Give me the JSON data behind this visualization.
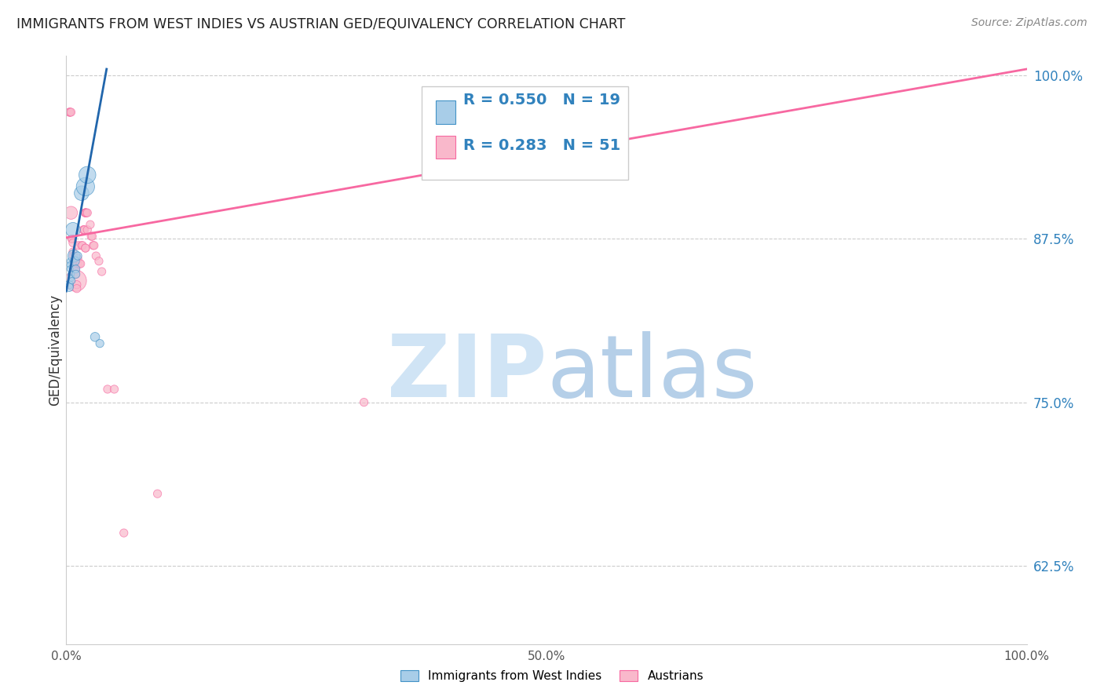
{
  "title": "IMMIGRANTS FROM WEST INDIES VS AUSTRIAN GED/EQUIVALENCY CORRELATION CHART",
  "source_text": "Source: ZipAtlas.com",
  "ylabel": "GED/Equivalency",
  "xlim": [
    0.0,
    1.0
  ],
  "ylim": [
    0.565,
    1.015
  ],
  "yticks": [
    0.625,
    0.75,
    0.875,
    1.0
  ],
  "ytick_labels": [
    "62.5%",
    "75.0%",
    "87.5%",
    "100.0%"
  ],
  "xticks": [
    0.0,
    0.1,
    0.2,
    0.3,
    0.4,
    0.5,
    0.6,
    0.7,
    0.8,
    0.9,
    1.0
  ],
  "xtick_labels": [
    "0.0%",
    "",
    "",
    "",
    "",
    "50.0%",
    "",
    "",
    "",
    "",
    "100.0%"
  ],
  "west_indies_color": "#a8cde8",
  "austrians_color": "#f9b8cb",
  "west_indies_edge_color": "#4292c6",
  "austrians_edge_color": "#f768a1",
  "west_indies_line_color": "#2166ac",
  "austrians_line_color": "#f768a1",
  "background_color": "#ffffff",
  "grid_color": "#cccccc",
  "axis_label_color": "#3182bd",
  "title_color": "#222222",
  "source_color": "#888888",
  "watermark_zip_color": "#d0e4f5",
  "watermark_atlas_color": "#b5cfe8",
  "blue_line_x0": 0.0,
  "blue_line_y0": 0.835,
  "blue_line_x1": 0.042,
  "blue_line_y1": 1.005,
  "pink_line_x0": 0.0,
  "pink_line_y0": 0.876,
  "pink_line_x1": 1.0,
  "pink_line_y1": 1.005,
  "west_indies_points": [
    [
      0.003,
      0.84
    ],
    [
      0.003,
      0.838
    ],
    [
      0.004,
      0.858
    ],
    [
      0.004,
      0.855
    ],
    [
      0.004,
      0.852
    ],
    [
      0.005,
      0.848
    ],
    [
      0.005,
      0.845
    ],
    [
      0.006,
      0.843
    ],
    [
      0.007,
      0.882
    ],
    [
      0.008,
      0.862
    ],
    [
      0.009,
      0.858
    ],
    [
      0.01,
      0.852
    ],
    [
      0.01,
      0.848
    ],
    [
      0.012,
      0.862
    ],
    [
      0.016,
      0.91
    ],
    [
      0.02,
      0.915
    ],
    [
      0.022,
      0.924
    ],
    [
      0.03,
      0.8
    ],
    [
      0.035,
      0.795
    ]
  ],
  "west_indies_sizes": [
    60,
    60,
    35,
    35,
    35,
    35,
    35,
    35,
    180,
    130,
    70,
    55,
    55,
    55,
    180,
    280,
    240,
    70,
    55
  ],
  "austrians_points": [
    [
      0.003,
      0.972
    ],
    [
      0.004,
      0.972
    ],
    [
      0.004,
      0.972
    ],
    [
      0.005,
      0.972
    ],
    [
      0.005,
      0.895
    ],
    [
      0.006,
      0.875
    ],
    [
      0.006,
      0.875
    ],
    [
      0.007,
      0.872
    ],
    [
      0.007,
      0.865
    ],
    [
      0.007,
      0.862
    ],
    [
      0.008,
      0.862
    ],
    [
      0.008,
      0.857
    ],
    [
      0.009,
      0.857
    ],
    [
      0.009,
      0.852
    ],
    [
      0.01,
      0.85
    ],
    [
      0.01,
      0.848
    ],
    [
      0.01,
      0.843
    ],
    [
      0.011,
      0.84
    ],
    [
      0.011,
      0.837
    ],
    [
      0.012,
      0.86
    ],
    [
      0.012,
      0.856
    ],
    [
      0.013,
      0.87
    ],
    [
      0.014,
      0.856
    ],
    [
      0.015,
      0.856
    ],
    [
      0.016,
      0.87
    ],
    [
      0.017,
      0.87
    ],
    [
      0.018,
      0.882
    ],
    [
      0.018,
      0.882
    ],
    [
      0.019,
      0.882
    ],
    [
      0.02,
      0.895
    ],
    [
      0.02,
      0.895
    ],
    [
      0.02,
      0.895
    ],
    [
      0.02,
      0.895
    ],
    [
      0.02,
      0.868
    ],
    [
      0.02,
      0.868
    ],
    [
      0.021,
      0.895
    ],
    [
      0.022,
      0.895
    ],
    [
      0.022,
      0.882
    ],
    [
      0.025,
      0.886
    ],
    [
      0.026,
      0.877
    ],
    [
      0.027,
      0.877
    ],
    [
      0.028,
      0.87
    ],
    [
      0.029,
      0.87
    ],
    [
      0.031,
      0.862
    ],
    [
      0.034,
      0.858
    ],
    [
      0.037,
      0.85
    ],
    [
      0.043,
      0.76
    ],
    [
      0.05,
      0.76
    ],
    [
      0.06,
      0.65
    ],
    [
      0.095,
      0.68
    ],
    [
      0.31,
      0.75
    ]
  ],
  "austrians_sizes": [
    55,
    55,
    55,
    55,
    140,
    55,
    55,
    55,
    55,
    55,
    55,
    55,
    55,
    55,
    55,
    55,
    380,
    55,
    55,
    55,
    55,
    55,
    55,
    55,
    55,
    55,
    55,
    55,
    55,
    55,
    55,
    55,
    55,
    55,
    55,
    55,
    55,
    55,
    55,
    55,
    55,
    55,
    55,
    55,
    55,
    55,
    55,
    55,
    55,
    55,
    55
  ]
}
